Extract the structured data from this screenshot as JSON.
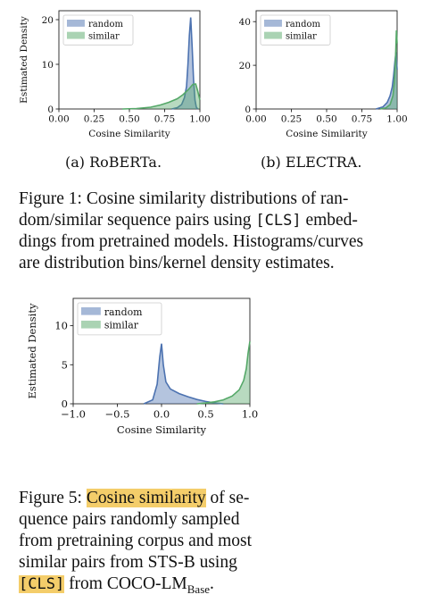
{
  "figure1": {
    "subfig_a": {
      "caption": "(a) RoBERTa.",
      "chart_data": {
        "type": "area",
        "xlabel": "Cosine Similarity",
        "ylabel": "Estimated Density",
        "xlim": [
          0.0,
          1.0
        ],
        "ylim": [
          0,
          22
        ],
        "xticks": [
          "0.00",
          "0.25",
          "0.50",
          "0.75",
          "1.00"
        ],
        "yticks": [
          "0",
          "10",
          "20"
        ],
        "legend": {
          "placement": "top-left",
          "entries": [
            "random",
            "similar"
          ]
        },
        "series": [
          {
            "name": "random",
            "color": "#4c72b0",
            "x": [
              0.8,
              0.84,
              0.87,
              0.89,
              0.905,
              0.915,
              0.925,
              0.935,
              0.945,
              0.955,
              0.965,
              0.975,
              0.985
            ],
            "y": [
              0.0,
              0.3,
              1.0,
              2.5,
              5.0,
              10.0,
              16.5,
              20.5,
              14.0,
              6.5,
              2.0,
              0.4,
              0.0
            ]
          },
          {
            "name": "similar",
            "color": "#55a868",
            "x": [
              0.45,
              0.55,
              0.65,
              0.72,
              0.78,
              0.84,
              0.88,
              0.92,
              0.95,
              0.97,
              0.985,
              1.0
            ],
            "y": [
              0.0,
              0.1,
              0.4,
              0.9,
              1.5,
              2.3,
              3.2,
              4.4,
              5.5,
              5.6,
              4.0,
              2.0
            ]
          }
        ]
      }
    },
    "subfig_b": {
      "caption": "(b) ELECTRA.",
      "chart_data": {
        "type": "area",
        "xlabel": "Cosine Similarity",
        "ylabel": "",
        "xlim": [
          0.0,
          1.0
        ],
        "ylim": [
          0,
          45
        ],
        "xticks": [
          "0.00",
          "0.25",
          "0.50",
          "0.75",
          "1.00"
        ],
        "yticks": [
          "0",
          "20",
          "40"
        ],
        "legend": {
          "placement": "top-left",
          "entries": [
            "random",
            "similar"
          ]
        },
        "series": [
          {
            "name": "random",
            "color": "#4c72b0",
            "x": [
              0.85,
              0.9,
              0.93,
              0.95,
              0.965,
              0.975,
              0.985,
              0.992,
              1.0
            ],
            "y": [
              0.0,
              1.0,
              3.0,
              6.0,
              10.0,
              15.0,
              22.0,
              26.0,
              18.0
            ]
          },
          {
            "name": "similar",
            "color": "#55a868",
            "x": [
              0.88,
              0.92,
              0.95,
              0.97,
              0.98,
              0.988,
              0.995,
              1.0
            ],
            "y": [
              0.0,
              0.5,
              2.0,
              6.0,
              12.0,
              22.0,
              36.0,
              30.0
            ]
          }
        ]
      }
    },
    "caption_lines": [
      [
        "Figure 1:  Cosine similarity distributions of ran-"
      ],
      [
        "dom/similar sequence pairs using ",
        "[CLS]",
        " embed-"
      ],
      [
        "dings from pretrained models. Histograms/curves"
      ],
      [
        "are distribution bins/kernel density estimates."
      ]
    ]
  },
  "figure5": {
    "chart_data": {
      "type": "area",
      "xlabel": "Cosine Similarity",
      "ylabel": "Estimated Density",
      "xlim": [
        -1.0,
        1.0
      ],
      "ylim": [
        0,
        13.5
      ],
      "xticks": [
        "−1.0",
        "−0.5",
        "0.0",
        "0.5",
        "1.0"
      ],
      "yticks": [
        "0",
        "5",
        "10"
      ],
      "legend": {
        "placement": "top-left",
        "entries": [
          "random",
          "similar"
        ]
      },
      "series": [
        {
          "name": "random",
          "color": "#4c72b0",
          "x": [
            -0.2,
            -0.1,
            -0.05,
            -0.02,
            0.0,
            0.02,
            0.05,
            0.1,
            0.2,
            0.3,
            0.4,
            0.5,
            0.6,
            0.7
          ],
          "y": [
            0.0,
            0.5,
            2.5,
            6.0,
            7.7,
            5.0,
            2.8,
            1.9,
            1.3,
            0.9,
            0.55,
            0.3,
            0.12,
            0.0
          ]
        },
        {
          "name": "similar",
          "color": "#55a868",
          "x": [
            0.4,
            0.5,
            0.6,
            0.7,
            0.8,
            0.88,
            0.93,
            0.96,
            0.98,
            1.0
          ],
          "y": [
            0.0,
            0.1,
            0.25,
            0.5,
            1.0,
            1.8,
            3.0,
            4.5,
            6.5,
            8.0
          ]
        }
      ]
    },
    "caption": {
      "line1_prefix": "Figure 5: ",
      "line1_highlight": "Cosine similarity",
      "line1_suffix": " of se-",
      "line2": "quence pairs randomly sampled",
      "line3": "from pretraining corpus and most",
      "line4": "similar pairs from STS-B using",
      "line5_code": "[CLS]",
      "line5_text": " from COCO-LM",
      "line5_subscript": "Base",
      "line5_end": "."
    }
  }
}
